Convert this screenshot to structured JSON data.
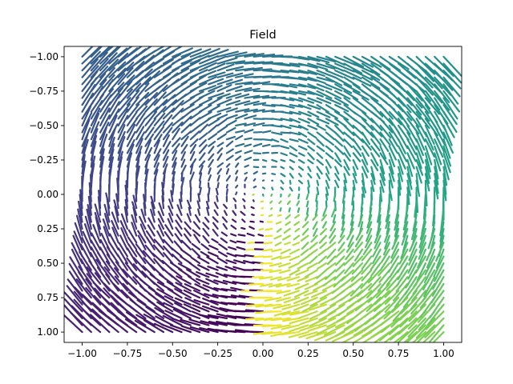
{
  "chart_data": {
    "type": "quiver",
    "title": "Field",
    "xlabel": "",
    "ylabel": "",
    "xlim": [
      -1.1,
      1.1
    ],
    "ylim": [
      1.075,
      -1.075
    ],
    "y_inverted": true,
    "x_ticks": [
      -1.0,
      -0.75,
      -0.5,
      -0.25,
      0.0,
      0.25,
      0.5,
      0.75,
      1.0
    ],
    "x_tick_labels": [
      "−1.00",
      "−0.75",
      "−0.50",
      "−0.25",
      "0.00",
      "0.25",
      "0.50",
      "0.75",
      "1.00"
    ],
    "y_ticks": [
      -1.0,
      -0.75,
      -0.5,
      -0.25,
      0.0,
      0.25,
      0.5,
      0.75,
      1.0
    ],
    "y_tick_labels": [
      "−1.00",
      "−0.75",
      "−0.50",
      "−0.25",
      "0.00",
      "0.25",
      "0.50",
      "0.75",
      "1.00"
    ],
    "grid": false,
    "colormap": "viridis",
    "field": "rotational vector field on a grid over x, y in [-1, 1], arrows colored by direction",
    "grid_x_range": [
      -1.0,
      1.0
    ],
    "grid_y_range": [
      -1.0,
      1.0
    ]
  }
}
